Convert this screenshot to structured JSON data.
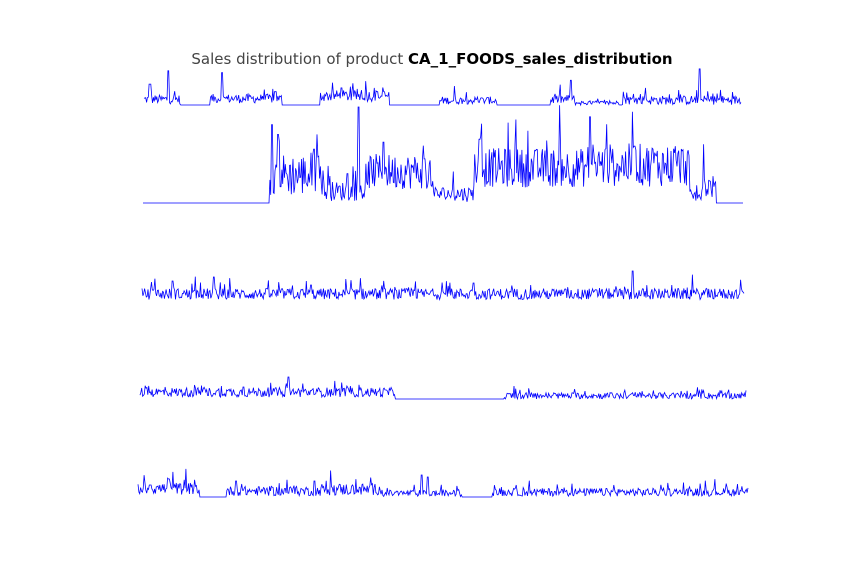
{
  "title": {
    "prefix": "Sales distribution of product",
    "product": "CA_1_FOODS_sales_distribution"
  },
  "colors": {
    "line": "#0000ff",
    "background": "#ffffff"
  },
  "chart_data": {
    "type": "line",
    "axes_visible": false,
    "grid": false,
    "legend": "none",
    "x_points": 1941,
    "series": [
      {
        "segments": [
          {
            "from": 0,
            "to": 0.06,
            "level": 0.1,
            "noise": 0.12,
            "spikes": [
              [
                0.04,
                0.9
              ],
              [
                0.01,
                0.55
              ]
            ]
          },
          {
            "from": 0.06,
            "to": 0.11,
            "level": 0.0,
            "noise": 0.0
          },
          {
            "from": 0.11,
            "to": 0.23,
            "level": 0.12,
            "noise": 0.12,
            "spikes": [
              [
                0.13,
                0.85
              ],
              [
                0.22,
                0.35
              ]
            ]
          },
          {
            "from": 0.23,
            "to": 0.295,
            "level": 0.0,
            "noise": 0.0
          },
          {
            "from": 0.295,
            "to": 0.41,
            "level": 0.18,
            "noise": 0.15,
            "spikes": [
              [
                0.33,
                0.45
              ],
              [
                0.39,
                0.35
              ]
            ]
          },
          {
            "from": 0.41,
            "to": 0.495,
            "level": 0.0,
            "noise": 0.0
          },
          {
            "from": 0.495,
            "to": 0.59,
            "level": 0.08,
            "noise": 0.1,
            "spikes": [
              [
                0.52,
                0.5
              ]
            ]
          },
          {
            "from": 0.59,
            "to": 0.68,
            "level": 0.0,
            "noise": 0.0
          },
          {
            "from": 0.68,
            "to": 0.72,
            "level": 0.1,
            "noise": 0.12,
            "spikes": [
              [
                0.715,
                0.65
              ]
            ]
          },
          {
            "from": 0.72,
            "to": 0.8,
            "level": 0.03,
            "noise": 0.06
          },
          {
            "from": 0.8,
            "to": 1.0,
            "level": 0.08,
            "noise": 0.12,
            "spikes": [
              [
                0.93,
                0.95
              ],
              [
                0.84,
                0.45
              ],
              [
                0.96,
                0.3
              ]
            ]
          }
        ]
      },
      {
        "segments": [
          {
            "from": 0,
            "to": 0.21,
            "level": 0.0,
            "noise": 0.0
          },
          {
            "from": 0.21,
            "to": 0.3,
            "level": 0.2,
            "noise": 0.22,
            "spikes": [
              [
                0.215,
                0.8
              ],
              [
                0.225,
                0.7
              ],
              [
                0.285,
                0.55
              ]
            ]
          },
          {
            "from": 0.3,
            "to": 0.375,
            "level": 0.08,
            "noise": 0.1,
            "spikes": [
              [
                0.36,
                0.98
              ],
              [
                0.34,
                0.3
              ]
            ]
          },
          {
            "from": 0.375,
            "to": 0.48,
            "level": 0.25,
            "noise": 0.18,
            "spikes": [
              [
                0.4,
                0.62
              ],
              [
                0.47,
                0.45
              ]
            ]
          },
          {
            "from": 0.48,
            "to": 0.55,
            "level": 0.06,
            "noise": 0.08
          },
          {
            "from": 0.55,
            "to": 0.74,
            "level": 0.28,
            "noise": 0.2,
            "spikes": [
              [
                0.56,
                0.65
              ],
              [
                0.62,
                0.6
              ],
              [
                0.68,
                0.5
              ]
            ]
          },
          {
            "from": 0.74,
            "to": 0.91,
            "level": 0.3,
            "noise": 0.22,
            "spikes": [
              [
                0.745,
                0.88
              ],
              [
                0.82,
                0.58
              ],
              [
                0.85,
                0.55
              ]
            ]
          },
          {
            "from": 0.91,
            "to": 0.935,
            "level": 0.05,
            "noise": 0.06,
            "spikes": [
              [
                0.935,
                0.6
              ]
            ]
          },
          {
            "from": 0.935,
            "to": 0.955,
            "level": 0.12,
            "noise": 0.12
          },
          {
            "from": 0.955,
            "to": 1.0,
            "level": 0.0,
            "noise": 0.0
          }
        ]
      },
      {
        "segments": [
          {
            "from": 0,
            "to": 1.0,
            "level": 0.12,
            "noise": 0.14,
            "spikes": [
              [
                0.05,
                0.5
              ],
              [
                0.12,
                0.6
              ],
              [
                0.28,
                0.4
              ],
              [
                0.55,
                0.45
              ],
              [
                0.815,
                0.75
              ],
              [
                0.88,
                0.4
              ]
            ]
          }
        ]
      },
      {
        "segments": [
          {
            "from": 0,
            "to": 0.42,
            "level": 0.12,
            "noise": 0.12,
            "spikes": [
              [
                0.245,
                0.55
              ],
              [
                0.09,
                0.35
              ],
              [
                0.17,
                0.3
              ]
            ]
          },
          {
            "from": 0.42,
            "to": 0.6,
            "level": 0.0,
            "noise": 0.0
          },
          {
            "from": 0.6,
            "to": 1.0,
            "level": 0.05,
            "noise": 0.08,
            "spikes": [
              [
                0.96,
                0.2
              ]
            ]
          }
        ]
      },
      {
        "segments": [
          {
            "from": 0,
            "to": 0.1,
            "level": 0.15,
            "noise": 0.15,
            "spikes": [
              [
                0.05,
                0.45
              ],
              [
                0.02,
                0.3
              ]
            ]
          },
          {
            "from": 0.1,
            "to": 0.145,
            "level": 0.0,
            "noise": 0.0
          },
          {
            "from": 0.145,
            "to": 0.3,
            "level": 0.1,
            "noise": 0.12,
            "spikes": [
              [
                0.16,
                0.4
              ],
              [
                0.29,
                0.4
              ]
            ]
          },
          {
            "from": 0.3,
            "to": 0.4,
            "level": 0.13,
            "noise": 0.15,
            "spikes": [
              [
                0.3,
                0.9
              ],
              [
                0.295,
                0.6
              ]
            ]
          },
          {
            "from": 0.4,
            "to": 0.53,
            "level": 0.06,
            "noise": 0.08,
            "spikes": [
              [
                0.465,
                0.55
              ],
              [
                0.475,
                0.5
              ]
            ]
          },
          {
            "from": 0.53,
            "to": 0.58,
            "level": 0.0,
            "noise": 0.0
          },
          {
            "from": 0.58,
            "to": 1.0,
            "level": 0.08,
            "noise": 0.1,
            "spikes": [
              [
                0.62,
                0.3
              ],
              [
                0.78,
                0.3
              ]
            ]
          }
        ]
      }
    ]
  }
}
